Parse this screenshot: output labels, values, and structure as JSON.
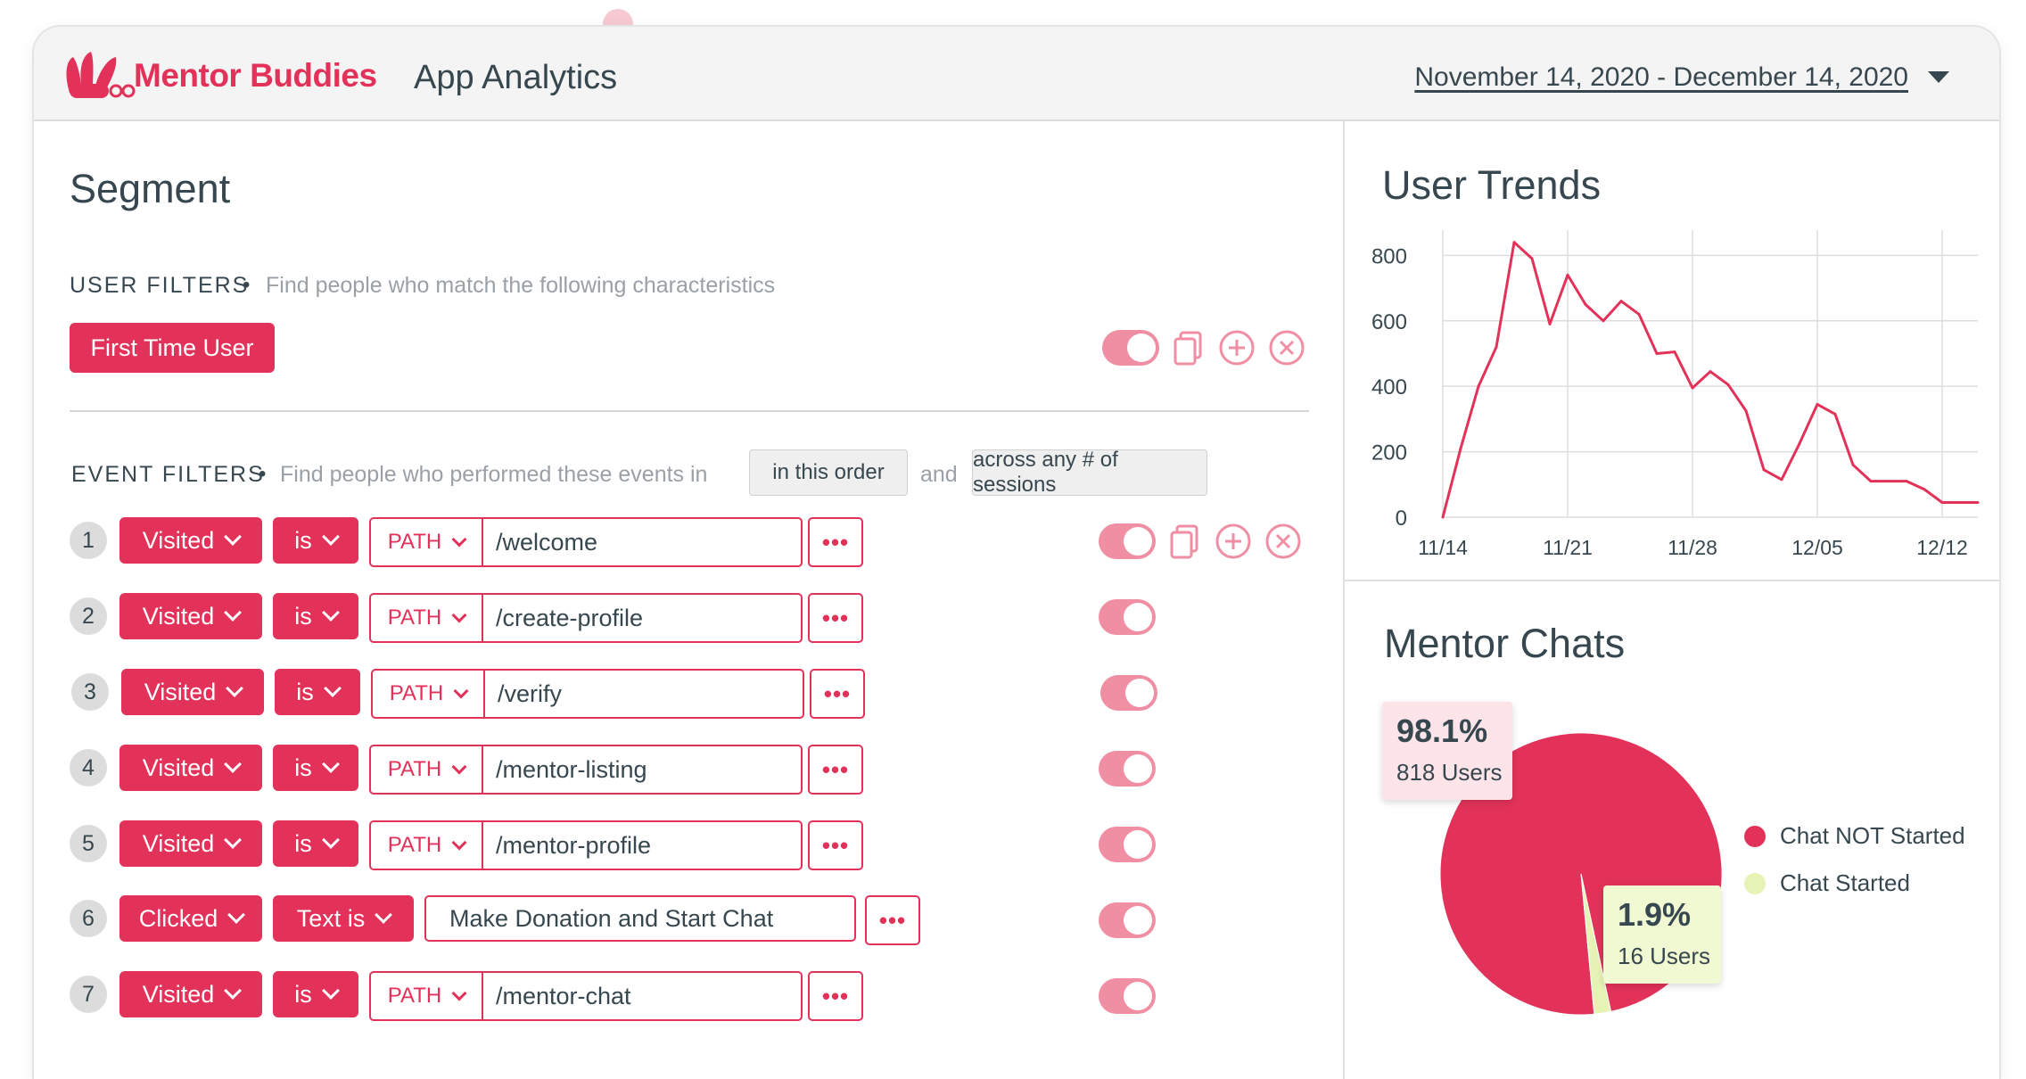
{
  "header": {
    "brand": "Mentor Buddies",
    "title": "App Analytics",
    "date_range": "November 14, 2020 - December 14, 2020"
  },
  "segment": {
    "title": "Segment",
    "user_filters": {
      "label": "USER FILTERS",
      "bullet": "•",
      "description": "Find people who match the following characteristics",
      "chip": "First Time User"
    },
    "event_filters": {
      "label": "EVENT FILTERS",
      "bullet": "•",
      "description": "Find people who performed these events in",
      "order_pill": "in this order",
      "conjunction": "and",
      "sessions_pill": "across any # of sessions",
      "rows": [
        {
          "num": "1",
          "action": "Visited",
          "operator": "is",
          "path_label": "PATH",
          "value": "/welcome",
          "more": "•••"
        },
        {
          "num": "2",
          "action": "Visited",
          "operator": "is",
          "path_label": "PATH",
          "value": "/create-profile",
          "more": "•••"
        },
        {
          "num": "3",
          "action": "Visited",
          "operator": "is",
          "path_label": "PATH",
          "value": "/verify",
          "more": "•••"
        },
        {
          "num": "4",
          "action": "Visited",
          "operator": "is",
          "path_label": "PATH",
          "value": "/mentor-listing",
          "more": "•••"
        },
        {
          "num": "5",
          "action": "Visited",
          "operator": "is",
          "path_label": "PATH",
          "value": "/mentor-profile",
          "more": "•••"
        },
        {
          "num": "6",
          "action": "Clicked",
          "operator": "Text is",
          "value": "Make Donation and Start Chat",
          "more": "•••"
        },
        {
          "num": "7",
          "action": "Visited",
          "operator": "is",
          "path_label": "PATH",
          "value": "/mentor-chat",
          "more": "•••"
        }
      ]
    }
  },
  "colors": {
    "accent": "#e3325a",
    "toggle": "#f08ea4",
    "text": "#37474f",
    "muted": "#9aa0a6",
    "chat_started": "#e6f3b5"
  },
  "user_trends": {
    "title": "User Trends"
  },
  "mentor_chats": {
    "title": "Mentor Chats",
    "callouts": [
      {
        "pct": "98.1%",
        "users": "818 Users"
      },
      {
        "pct": "1.9%",
        "users": "16 Users"
      }
    ]
  },
  "chart_data": [
    {
      "type": "line",
      "title": "User Trends",
      "xlabel": "",
      "ylabel": "",
      "x_tick_labels": [
        "11/14",
        "11/21",
        "11/28",
        "12/05",
        "12/12"
      ],
      "y_ticks": [
        0,
        200,
        400,
        600,
        800
      ],
      "ylim": [
        0,
        850
      ],
      "grid": true,
      "x": [
        "11/14",
        "11/15",
        "11/16",
        "11/17",
        "11/18",
        "11/19",
        "11/20",
        "11/21",
        "11/22",
        "11/23",
        "11/24",
        "11/25",
        "11/26",
        "11/27",
        "11/28",
        "11/29",
        "11/30",
        "12/01",
        "12/02",
        "12/03",
        "12/04",
        "12/05",
        "12/06",
        "12/07",
        "12/08",
        "12/09",
        "12/10",
        "12/11",
        "12/12",
        "12/13",
        "12/14"
      ],
      "series": [
        {
          "values": [
            0,
            210,
            400,
            520,
            840,
            790,
            590,
            740,
            650,
            600,
            660,
            620,
            500,
            505,
            395,
            445,
            405,
            325,
            145,
            115,
            225,
            345,
            315,
            160,
            110,
            110,
            110,
            85,
            45,
            45,
            45
          ]
        }
      ]
    },
    {
      "type": "pie",
      "title": "Mentor Chats",
      "legend_position": "right",
      "slices": [
        {
          "label": "Chat NOT Started",
          "value": 98.1,
          "users": 818,
          "color": "#e3325a"
        },
        {
          "label": "Chat Started",
          "value": 1.9,
          "users": 16,
          "color": "#e6f3b5"
        }
      ]
    }
  ]
}
